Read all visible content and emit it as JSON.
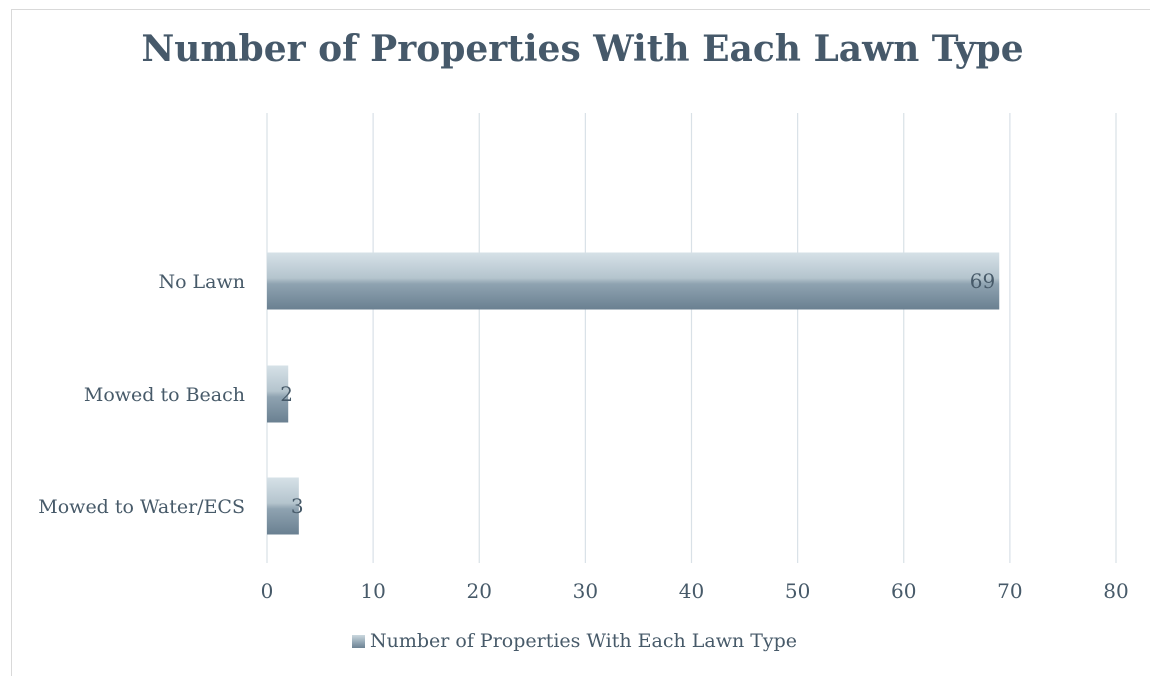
{
  "chart_data": {
    "type": "bar",
    "orientation": "horizontal",
    "title": "Number of Properties With Each Lawn Type",
    "categories": [
      "No Lawn",
      "Mowed to Beach",
      "Mowed to Water/ECS"
    ],
    "series": [
      {
        "name": "Number of Properties With Each Lawn Type",
        "values": [
          69,
          2,
          3
        ]
      }
    ],
    "data_labels": [
      "69",
      "2",
      "3"
    ],
    "xlim": [
      0,
      80
    ],
    "xticks": [
      "0",
      "10",
      "20",
      "30",
      "40",
      "50",
      "60",
      "70",
      "80"
    ],
    "grid": true,
    "legend_position": "bottom",
    "colors": {
      "bar_light": "#c9d6dd",
      "bar_dark": "#6e8494",
      "grid": "#d9e1e7",
      "text": "#475a69",
      "title": "#46596a"
    }
  }
}
